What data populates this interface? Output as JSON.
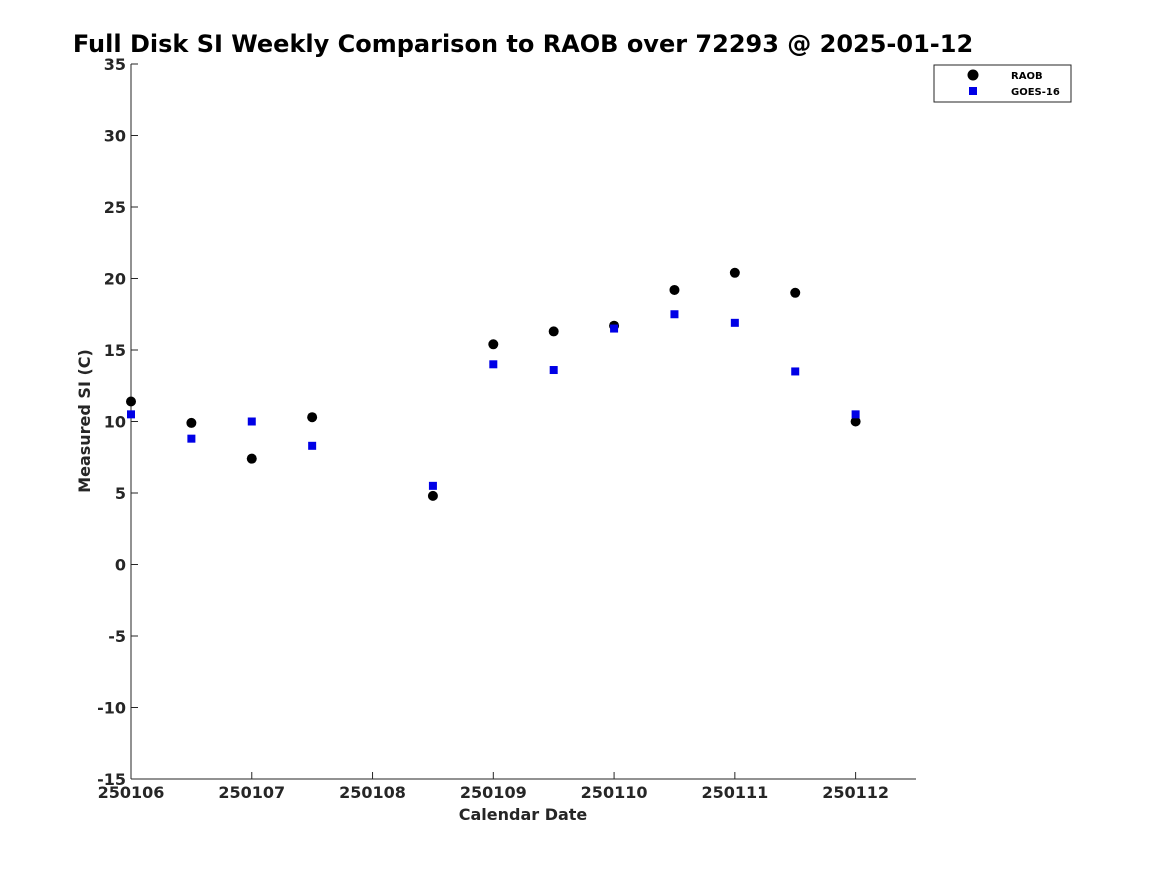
{
  "chart_data": {
    "type": "scatter",
    "title": "Full Disk SI Weekly Comparison to RAOB over 72293 @ 2025-01-12",
    "xlabel": "Calendar Date",
    "ylabel": "Measured SI (C)",
    "x_ticks": [
      "250106",
      "250107",
      "250108",
      "250109",
      "250110",
      "250111",
      "250112"
    ],
    "xlim": [
      0,
      6.5
    ],
    "ylim": [
      -15,
      35
    ],
    "y_ticks": [
      -15,
      -10,
      -5,
      0,
      5,
      10,
      15,
      20,
      25,
      30,
      35
    ],
    "grid": false,
    "legend_position": "top-right",
    "series": [
      {
        "name": "RAOB",
        "marker": "circle",
        "color": "#000000",
        "x": [
          0,
          0.5,
          1,
          1.5,
          2.5,
          3,
          3.5,
          4,
          4.5,
          5,
          5.5,
          6
        ],
        "y": [
          11.4,
          9.9,
          7.4,
          10.3,
          4.8,
          15.4,
          16.3,
          16.7,
          19.2,
          20.4,
          19.0,
          10.0
        ]
      },
      {
        "name": "GOES-16",
        "marker": "square",
        "color": "#0000e6",
        "x": [
          0,
          0.5,
          1,
          1.5,
          2.5,
          3,
          3.5,
          4,
          4.5,
          5,
          5.5,
          6
        ],
        "y": [
          10.5,
          8.8,
          10.0,
          8.3,
          5.5,
          14.0,
          13.6,
          16.5,
          17.5,
          16.9,
          13.5,
          10.5
        ]
      }
    ]
  }
}
